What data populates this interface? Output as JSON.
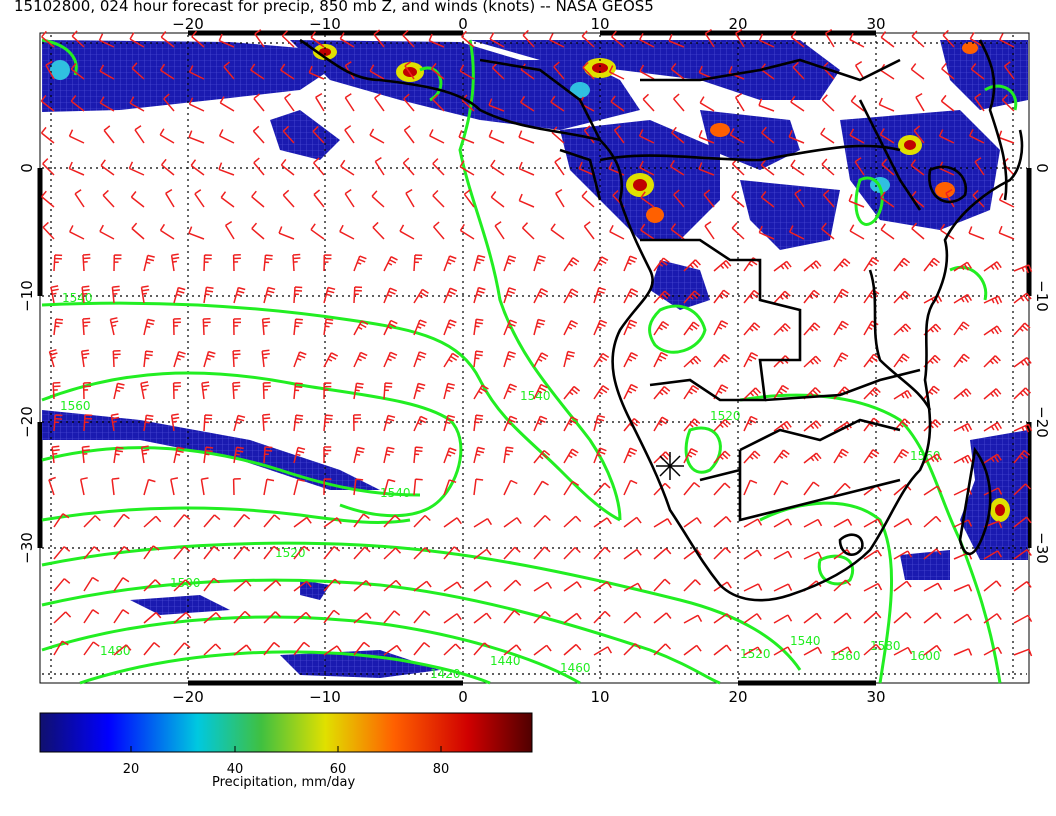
{
  "title": "15102800, 024 hour forecast for precip, 850 mb Z, and winds (knots) -- NASA GEOS5",
  "map": {
    "lon_range": [
      -30,
      40
    ],
    "lat_range": [
      -40,
      10
    ],
    "lon_ticks": [
      "−20",
      "−10",
      "0",
      "10",
      "20",
      "30"
    ],
    "lat_ticks": [
      "0",
      "−10",
      "−20",
      "−30"
    ],
    "contour_color": "#22ee22",
    "wind_barb_color": "#ee2020",
    "coastline_color": "#000000",
    "contour_labels": [
      "1540",
      "1560",
      "1540",
      "1520",
      "1500",
      "1480",
      "1440",
      "1460",
      "1420",
      "1520",
      "1540",
      "1560",
      "1580",
      "1600",
      "1540",
      "1520",
      "1560"
    ]
  },
  "colorbar": {
    "ticks": [
      "20",
      "40",
      "60",
      "80"
    ],
    "title": "Precipitation, mm/day",
    "colors": [
      "#10106e",
      "#0000ff",
      "#00c8e0",
      "#40c040",
      "#e0e000",
      "#ff6000",
      "#d00000",
      "#500000"
    ]
  }
}
